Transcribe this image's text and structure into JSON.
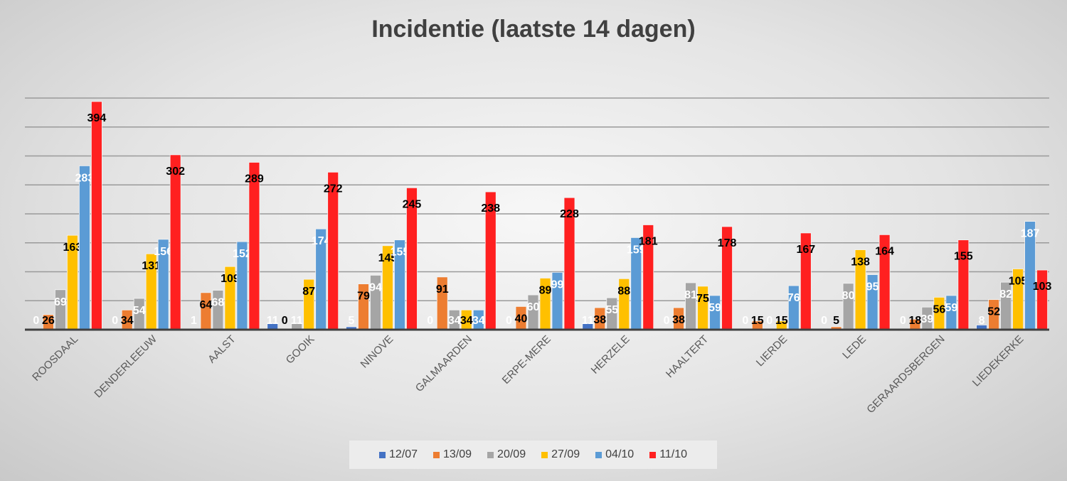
{
  "chart_data": {
    "type": "bar",
    "title": "Incidentie (laatste 14 dagen)",
    "xlabel": "",
    "ylabel": "",
    "ylim": [
      0,
      400
    ],
    "grid": true,
    "legend_position": "bottom",
    "categories": [
      "ROOSDAAL",
      "DENDERLEEUW",
      "AALST",
      "GOOIK",
      "NINOVE",
      "GALMAARDEN",
      "ERPE-MERE",
      "HERZELE",
      "HAALTERT",
      "LIERDE",
      "LEDE",
      "GERAARDSBERGEN",
      "LIEDEKERKE"
    ],
    "series": [
      {
        "name": "12/07",
        "color": "#4472C4",
        "label_color": "#ffffff",
        "values": [
          0,
          0,
          1,
          11,
          5,
          0,
          0,
          11,
          0,
          0,
          0,
          0,
          8
        ]
      },
      {
        "name": "13/09",
        "color": "#ED7D31",
        "label_color": "#000000",
        "values": [
          26,
          34,
          64,
          0,
          79,
          91,
          40,
          38,
          38,
          15,
          5,
          18,
          52
        ]
      },
      {
        "name": "20/09",
        "color": "#A5A5A5",
        "label_color": "#ffffff",
        "values": [
          69,
          54,
          68,
          11,
          94,
          34,
          60,
          55,
          81,
          0,
          80,
          39,
          82
        ]
      },
      {
        "name": "27/09",
        "color": "#FFC000",
        "label_color": "#000000",
        "values": [
          163,
          131,
          109,
          87,
          145,
          34,
          89,
          88,
          75,
          15,
          138,
          56,
          105
        ]
      },
      {
        "name": "04/10",
        "color": "#5B9BD5",
        "label_color": "#ffffff",
        "values": [
          283,
          156,
          152,
          174,
          155,
          34,
          99,
          159,
          59,
          76,
          95,
          59,
          187
        ]
      },
      {
        "name": "11/10",
        "color": "#FF2020",
        "label_color": "#000000",
        "values": [
          394,
          302,
          289,
          272,
          245,
          238,
          228,
          181,
          178,
          167,
          164,
          155,
          103
        ]
      }
    ]
  }
}
